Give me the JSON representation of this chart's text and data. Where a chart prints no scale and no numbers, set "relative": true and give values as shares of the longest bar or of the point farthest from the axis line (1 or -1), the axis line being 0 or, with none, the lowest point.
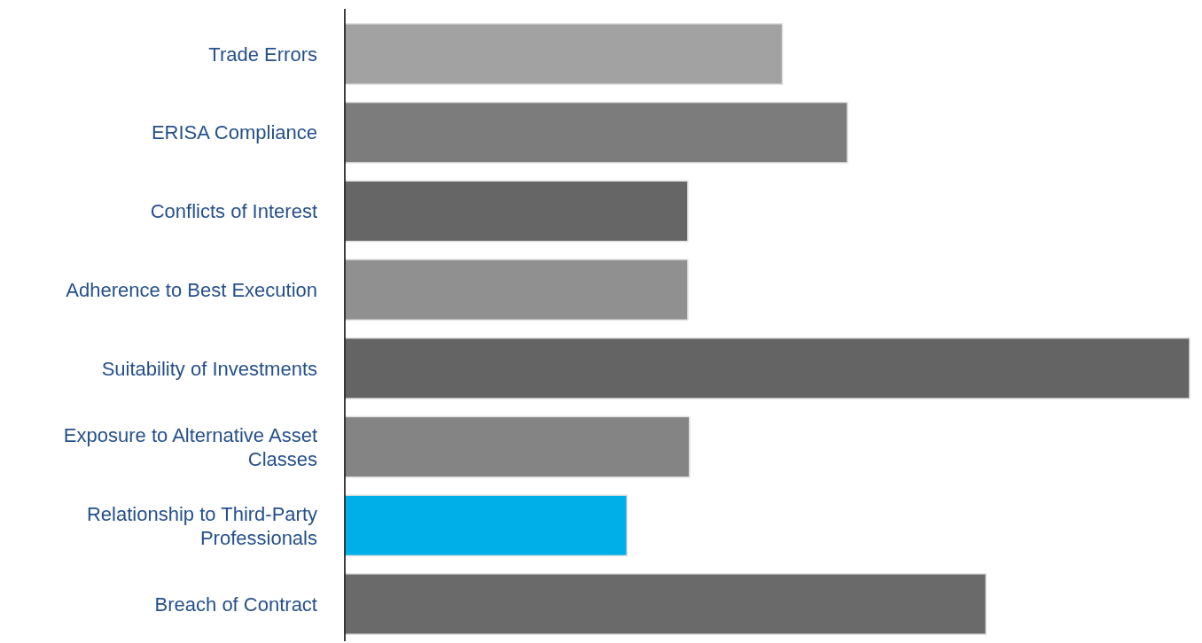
{
  "chart_data": {
    "type": "bar",
    "orientation": "horizontal",
    "relative": true,
    "categories": [
      "Trade Errors",
      "ERISA Compliance",
      "Conflicts of Interest",
      "Adherence to Best Execution",
      "Suitability of Investments",
      "Exposure to Alternative Asset Classes",
      "Relationship to Third-Party Professionals",
      "Breach of Contract"
    ],
    "values": [
      0.518,
      0.595,
      0.406,
      0.406,
      1,
      0.408,
      0.334,
      0.759
    ],
    "colors": [
      "#a2a2a2",
      "#7c7c7c",
      "#666666",
      "#909090",
      "#646464",
      "#848484",
      "#00aee8",
      "#6a6a6a"
    ]
  }
}
